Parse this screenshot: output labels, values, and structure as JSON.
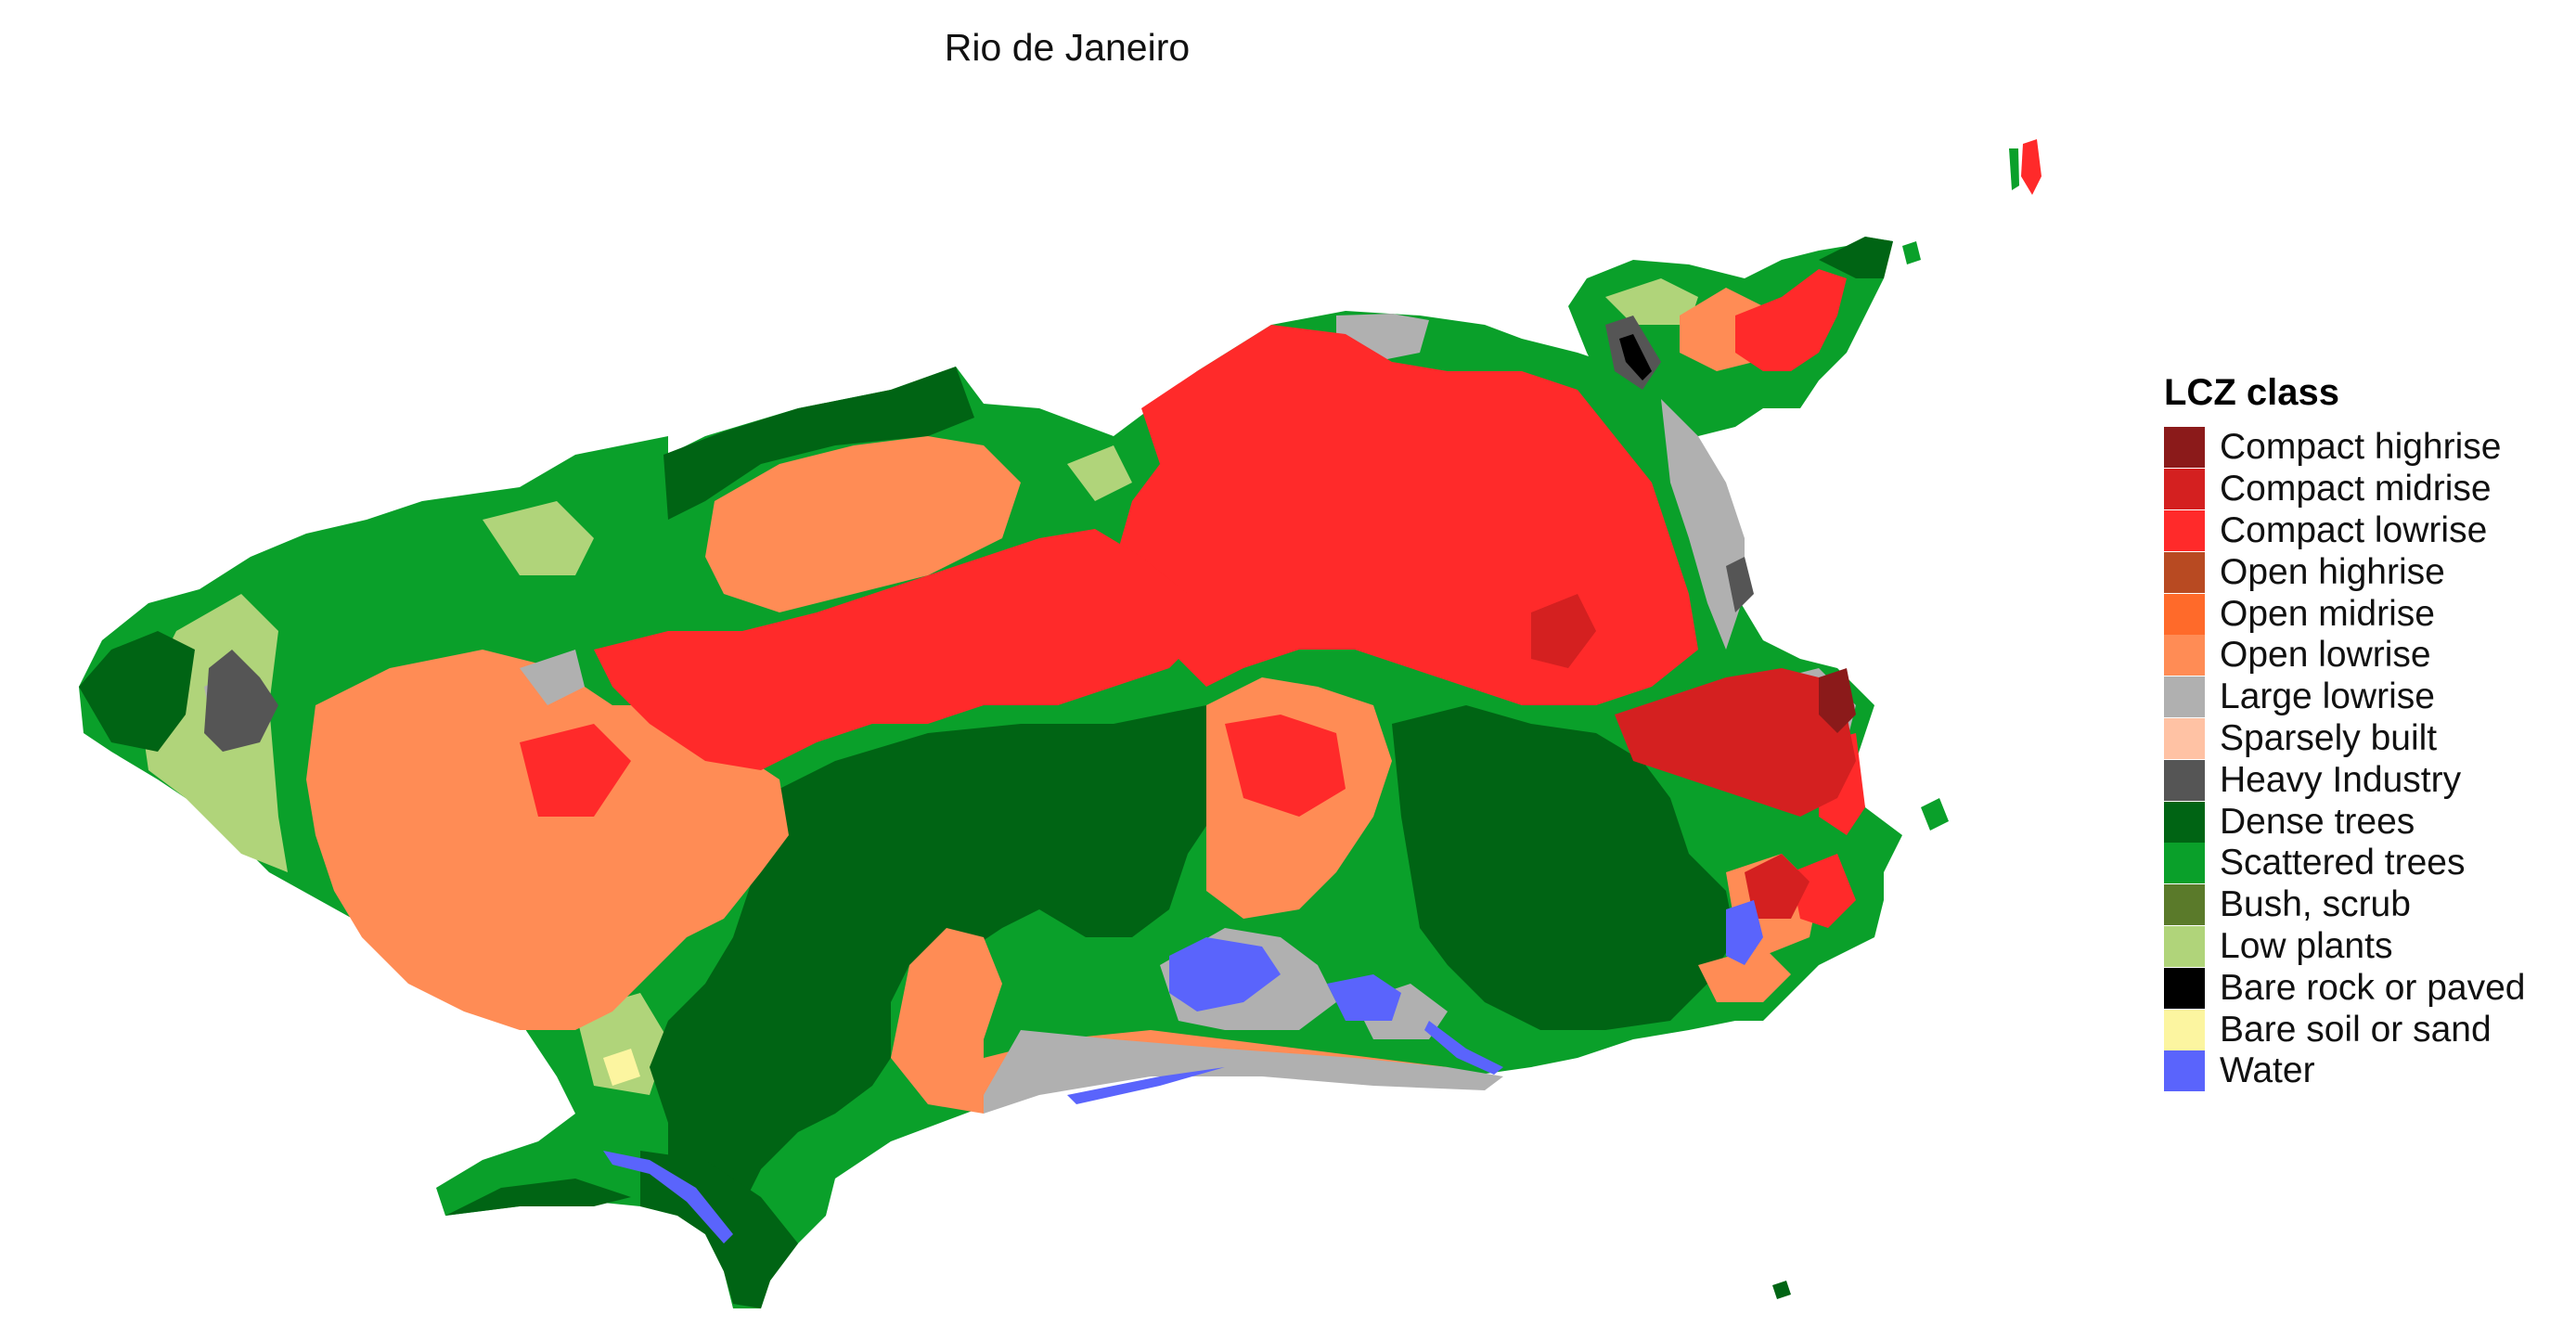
{
  "map": {
    "title": "Rio de Janeiro"
  },
  "legend": {
    "title": "LCZ class",
    "items": [
      {
        "label": "Compact highrise",
        "color": "#8b1a1a"
      },
      {
        "label": "Compact midrise",
        "color": "#d42020"
      },
      {
        "label": "Compact lowrise",
        "color": "#ff2a2a"
      },
      {
        "label": "Open highrise",
        "color": "#b84a22"
      },
      {
        "label": "Open midrise",
        "color": "#ff6a2a"
      },
      {
        "label": "Open lowrise",
        "color": "#ff8c55"
      },
      {
        "label": "Large lowrise",
        "color": "#b0b0b0"
      },
      {
        "label": "Sparsely built",
        "color": "#ffc2a4"
      },
      {
        "label": "Heavy Industry",
        "color": "#555555"
      },
      {
        "label": "Dense trees",
        "color": "#006414"
      },
      {
        "label": "Scattered trees",
        "color": "#0aa02a"
      },
      {
        "label": "Bush, scrub",
        "color": "#5a7a2a"
      },
      {
        "label": "Low plants",
        "color": "#b0d47a"
      },
      {
        "label": "Bare rock or paved",
        "color": "#000000"
      },
      {
        "label": "Bare soil or sand",
        "color": "#fcf5a0"
      },
      {
        "label": "Water",
        "color": "#5a64fc"
      }
    ]
  }
}
